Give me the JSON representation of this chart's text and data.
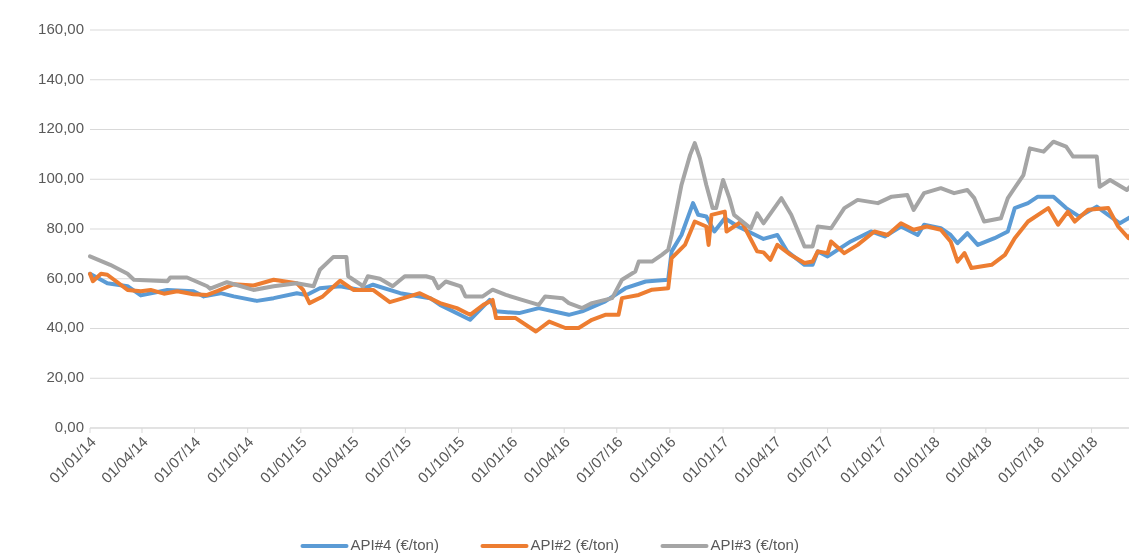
{
  "chart_data": {
    "type": "line",
    "xlim": [
      "2014-01-01",
      "2018-12-10"
    ],
    "ylim": [
      0,
      160
    ],
    "xticks": [
      {
        "value": "2014-01-01",
        "label": "01/01/14"
      },
      {
        "value": "2014-04-01",
        "label": "01/04/14"
      },
      {
        "value": "2014-07-01",
        "label": "01/07/14"
      },
      {
        "value": "2014-10-01",
        "label": "01/10/14"
      },
      {
        "value": "2015-01-01",
        "label": "01/01/15"
      },
      {
        "value": "2015-04-01",
        "label": "01/04/15"
      },
      {
        "value": "2015-07-01",
        "label": "01/07/15"
      },
      {
        "value": "2015-10-01",
        "label": "01/10/15"
      },
      {
        "value": "2016-01-01",
        "label": "01/01/16"
      },
      {
        "value": "2016-04-01",
        "label": "01/04/16"
      },
      {
        "value": "2016-07-01",
        "label": "01/07/16"
      },
      {
        "value": "2016-10-01",
        "label": "01/10/16"
      },
      {
        "value": "2017-01-01",
        "label": "01/01/17"
      },
      {
        "value": "2017-04-01",
        "label": "01/04/17"
      },
      {
        "value": "2017-07-01",
        "label": "01/07/17"
      },
      {
        "value": "2017-10-01",
        "label": "01/10/17"
      },
      {
        "value": "2018-01-01",
        "label": "01/01/18"
      },
      {
        "value": "2018-04-01",
        "label": "01/04/18"
      },
      {
        "value": "2018-07-01",
        "label": "01/07/18"
      },
      {
        "value": "2018-10-01",
        "label": "01/10/18"
      }
    ],
    "yticks": [
      {
        "value": 0,
        "label": "0,00"
      },
      {
        "value": 20,
        "label": "20,00"
      },
      {
        "value": 40,
        "label": "40,00"
      },
      {
        "value": 60,
        "label": "60,00"
      },
      {
        "value": 80,
        "label": "80,00"
      },
      {
        "value": 100,
        "label": "100,00"
      },
      {
        "value": 120,
        "label": "120,00"
      },
      {
        "value": 140,
        "label": "140,00"
      },
      {
        "value": 160,
        "label": "160,00"
      }
    ],
    "grid": "y",
    "legend": "bottom",
    "marker": "none",
    "line_style": "solid",
    "series": [
      {
        "name": "API#4 (€/ton)",
        "color": "#5b9bd5",
        "x": [
          "2014-01-01",
          "2014-01-31",
          "2014-03-07",
          "2014-03-30",
          "2014-05-15",
          "2014-06-29",
          "2014-07-17",
          "2014-08-15",
          "2014-09-07",
          "2014-10-17",
          "2014-11-15",
          "2014-12-25",
          "2015-01-11",
          "2015-02-03",
          "2015-03-10",
          "2015-04-14",
          "2015-05-06",
          "2015-06-22",
          "2015-07-10",
          "2015-08-13",
          "2015-08-30",
          "2015-10-21",
          "2015-11-24",
          "2015-12-05",
          "2016-01-14",
          "2016-02-17",
          "2016-04-09",
          "2016-05-02",
          "2016-06-11",
          "2016-07-16",
          "2016-08-20",
          "2016-09-28",
          "2016-10-04",
          "2016-10-21",
          "2016-11-10",
          "2016-11-19",
          "2016-12-03",
          "2016-12-17",
          "2017-01-04",
          "2017-01-27",
          "2017-03-12",
          "2017-04-05",
          "2017-04-22",
          "2017-05-22",
          "2017-06-05",
          "2017-06-14",
          "2017-07-01",
          "2017-08-10",
          "2017-09-14",
          "2017-10-08",
          "2017-11-05",
          "2017-12-04",
          "2017-12-15",
          "2018-01-13",
          "2018-01-30",
          "2018-02-11",
          "2018-02-28",
          "2018-03-18",
          "2018-04-16",
          "2018-05-09",
          "2018-05-21",
          "2018-06-13",
          "2018-06-30",
          "2018-07-27",
          "2018-08-18",
          "2018-09-10",
          "2018-10-10",
          "2018-11-19",
          "2018-12-09"
        ],
        "values": [
          62,
          58.2,
          57,
          53.3,
          55.5,
          55,
          52.9,
          54.2,
          52.9,
          51.1,
          52.2,
          54.2,
          53.5,
          56.2,
          57,
          55.5,
          57.6,
          54.2,
          53.5,
          52.2,
          49.5,
          43.5,
          51.5,
          46.9,
          46.2,
          48.2,
          45.5,
          46.9,
          50.9,
          56.2,
          58.9,
          59.6,
          71,
          77.6,
          90.4,
          85.7,
          85,
          79,
          84.3,
          81,
          76,
          77.6,
          71,
          65.6,
          65.6,
          71,
          69,
          75,
          79,
          77,
          81,
          77.6,
          81.7,
          80.3,
          77.6,
          74.3,
          78.3,
          73.6,
          76.3,
          79,
          88.4,
          90.4,
          93,
          93,
          88.4,
          85,
          89,
          82.3,
          85
        ]
      },
      {
        "name": "API#2 (€/ton)",
        "color": "#ed7d31",
        "x": [
          "2014-01-01",
          "2014-01-06",
          "2014-01-20",
          "2014-01-31",
          "2014-03-07",
          "2014-03-30",
          "2014-04-16",
          "2014-05-09",
          "2014-06-01",
          "2014-06-29",
          "2014-07-23",
          "2014-08-09",
          "2014-09-07",
          "2014-10-11",
          "2014-11-15",
          "2014-12-25",
          "2015-01-05",
          "2015-01-16",
          "2015-02-08",
          "2015-02-20",
          "2015-03-10",
          "2015-04-02",
          "2015-05-06",
          "2015-06-04",
          "2015-07-08",
          "2015-07-26",
          "2015-08-30",
          "2015-09-28",
          "2015-10-21",
          "2015-11-13",
          "2015-11-29",
          "2015-12-05",
          "2016-01-08",
          "2016-02-12",
          "2016-03-06",
          "2016-04-03",
          "2016-04-26",
          "2016-05-19",
          "2016-06-11",
          "2016-07-04",
          "2016-07-10",
          "2016-08-08",
          "2016-08-31",
          "2016-09-28",
          "2016-10-04",
          "2016-10-27",
          "2016-11-13",
          "2016-12-03",
          "2016-12-07",
          "2016-12-12",
          "2017-01-04",
          "2017-01-07",
          "2017-02-02",
          "2017-03-01",
          "2017-03-12",
          "2017-03-24",
          "2017-04-05",
          "2017-04-28",
          "2017-05-22",
          "2017-06-05",
          "2017-06-14",
          "2017-07-01",
          "2017-07-07",
          "2017-07-30",
          "2017-08-22",
          "2017-09-20",
          "2017-10-13",
          "2017-11-05",
          "2017-11-27",
          "2017-12-20",
          "2018-01-13",
          "2018-01-30",
          "2018-02-11",
          "2018-02-23",
          "2018-03-07",
          "2018-04-11",
          "2018-05-04",
          "2018-05-21",
          "2018-06-13",
          "2018-07-18",
          "2018-08-04",
          "2018-08-21",
          "2018-09-02",
          "2018-09-25",
          "2018-10-30",
          "2018-11-16",
          "2018-12-04",
          "2018-12-09"
        ],
        "values": [
          62,
          59,
          62,
          61.6,
          55.5,
          55,
          55.5,
          54,
          55,
          53.8,
          53.5,
          55,
          57.8,
          57.3,
          59.6,
          58.2,
          55.5,
          50.2,
          52.9,
          55.5,
          59.2,
          55.5,
          55.5,
          50.6,
          52.9,
          54.2,
          50.2,
          48.2,
          45.5,
          49.5,
          51.5,
          44.2,
          44.2,
          38.8,
          42.8,
          40.2,
          40.2,
          43.5,
          45.5,
          45.5,
          52.2,
          53.5,
          55.6,
          56.2,
          68.3,
          73.6,
          83,
          81,
          73.6,
          85.7,
          87,
          79,
          83,
          71,
          70.6,
          67.6,
          73.6,
          69.6,
          66.3,
          66.9,
          71,
          70.3,
          75,
          70.3,
          73.6,
          79,
          77.6,
          82.3,
          79.7,
          81,
          79.7,
          75,
          66.9,
          70.3,
          64.3,
          65.6,
          69.6,
          76.3,
          83,
          88.4,
          81.7,
          87,
          83,
          87.7,
          88.4,
          81,
          76.3,
          78.3
        ]
      },
      {
        "name": "API#3 (€/ton)",
        "color": "#a5a5a5",
        "x": [
          "2014-01-01",
          "2014-02-05",
          "2014-03-07",
          "2014-03-18",
          "2014-05-15",
          "2014-05-20",
          "2014-06-18",
          "2014-07-23",
          "2014-07-28",
          "2014-08-26",
          "2014-09-12",
          "2014-10-11",
          "2014-11-15",
          "2014-12-25",
          "2015-01-23",
          "2015-02-03",
          "2015-02-26",
          "2015-03-21",
          "2015-03-24",
          "2015-04-19",
          "2015-04-27",
          "2015-05-18",
          "2015-06-09",
          "2015-06-30",
          "2015-08-06",
          "2015-08-18",
          "2015-08-27",
          "2015-09-09",
          "2015-10-05",
          "2015-10-13",
          "2015-11-12",
          "2015-11-29",
          "2015-12-22",
          "2016-01-19",
          "2016-02-17",
          "2016-02-28",
          "2016-03-29",
          "2016-04-09",
          "2016-05-02",
          "2016-05-19",
          "2016-06-23",
          "2016-07-10",
          "2016-08-02",
          "2016-08-08",
          "2016-08-31",
          "2016-09-17",
          "2016-09-28",
          "2016-10-04",
          "2016-10-21",
          "2016-11-05",
          "2016-11-13",
          "2016-11-22",
          "2016-12-03",
          "2016-12-14",
          "2016-12-20",
          "2017-01-01",
          "2017-01-12",
          "2017-01-20",
          "2017-02-18",
          "2017-03-01",
          "2017-03-12",
          "2017-04-12",
          "2017-04-29",
          "2017-05-22",
          "2017-06-05",
          "2017-06-14",
          "2017-07-07",
          "2017-07-30",
          "2017-08-22",
          "2017-09-26",
          "2017-10-20",
          "2017-11-16",
          "2017-11-27",
          "2017-12-15",
          "2018-01-13",
          "2018-02-05",
          "2018-02-28",
          "2018-03-12",
          "2018-03-29",
          "2018-04-27",
          "2018-05-09",
          "2018-06-05",
          "2018-06-16",
          "2018-07-10",
          "2018-07-27",
          "2018-08-18",
          "2018-08-30",
          "2018-10-10",
          "2018-10-15",
          "2018-11-02",
          "2018-12-01",
          "2018-12-09"
        ],
        "values": [
          69,
          65.6,
          62,
          59.6,
          59,
          60.5,
          60.5,
          57,
          56,
          58.6,
          57.5,
          55.5,
          57,
          58.2,
          57,
          63.6,
          68.7,
          68.7,
          61,
          57,
          61,
          60,
          57,
          61,
          61,
          60.2,
          56.2,
          58.9,
          56.9,
          52.9,
          52.9,
          55.6,
          53.5,
          51.5,
          49.5,
          52.9,
          52.2,
          50.2,
          48.2,
          50.2,
          52.2,
          59.6,
          62.9,
          66.9,
          66.9,
          69.6,
          71.6,
          77.6,
          97.7,
          109.8,
          114.5,
          108.4,
          97.7,
          88.4,
          88.4,
          99.7,
          92.4,
          85.7,
          80.3,
          86.3,
          82.3,
          92.4,
          85.7,
          73,
          73,
          81,
          80.3,
          88.4,
          91.7,
          90.4,
          93,
          93.7,
          87.7,
          94.4,
          96.4,
          94.4,
          95.7,
          92.4,
          83,
          84.3,
          92.4,
          101.7,
          112.4,
          111.1,
          115.1,
          113.1,
          109.1,
          109.1,
          97,
          99.7,
          95.7,
          97.5
        ]
      }
    ]
  }
}
